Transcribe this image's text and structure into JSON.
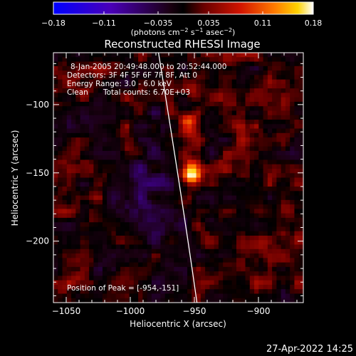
{
  "chart_data": {
    "type": "heatmap",
    "title": "Reconstructed RHESSI Image",
    "xlabel": "Heliocentric X (arcsec)",
    "ylabel": "Heliocentric Y (arcsec)",
    "xlim": [
      -1060,
      -865
    ],
    "ylim": [
      -245,
      -62
    ],
    "xticks": [
      -1050,
      -1000,
      -950,
      -900
    ],
    "xtick_labels": [
      "−1050",
      "−1000",
      "−950",
      "−900"
    ],
    "yticks": [
      -100,
      -150,
      -200
    ],
    "ytick_labels": [
      "−100",
      "−150",
      "−200"
    ],
    "colorbar": {
      "min": -0.18,
      "max": 0.18,
      "tick_values": [
        -0.18,
        -0.11,
        -0.035,
        0.035,
        0.11,
        0.18
      ],
      "tick_labels": [
        "−0.18",
        "−0.11",
        "−0.035",
        "0.035",
        "0.11",
        "0.18"
      ],
      "unit_prefix": "(photons cm",
      "unit_sup1": "−2",
      "unit_mid": " s",
      "unit_sup2": "−1",
      "unit_mid2": " asec",
      "unit_sup3": "−2",
      "unit_suffix": ")"
    },
    "sources": [
      {
        "x": -953,
        "y": -151,
        "peak": 0.18
      },
      {
        "x": -955,
        "y": -114,
        "peak": 0.11
      },
      {
        "x": -950,
        "y": -88,
        "peak": 0.07
      }
    ],
    "limb_curve": [
      [
        -978,
        -62
      ],
      [
        -968,
        -120
      ],
      [
        -957,
        -185
      ],
      [
        -948,
        -245
      ]
    ],
    "annotations": {
      "line1": "8-Jan-2005 20:49:48.000 to 20:52:44.000",
      "line2": "Detectors: 3F 4F 5F 6F 7F 8F, Att 0",
      "line3": "Energy Range: 3.0 - 6.0 keV",
      "line4_a": "Clean",
      "line4_b": "Total counts: 6.70E+03",
      "peak": "Position of Peak = [-954,-151]"
    }
  },
  "footer_date": "27-Apr-2022 14:25"
}
